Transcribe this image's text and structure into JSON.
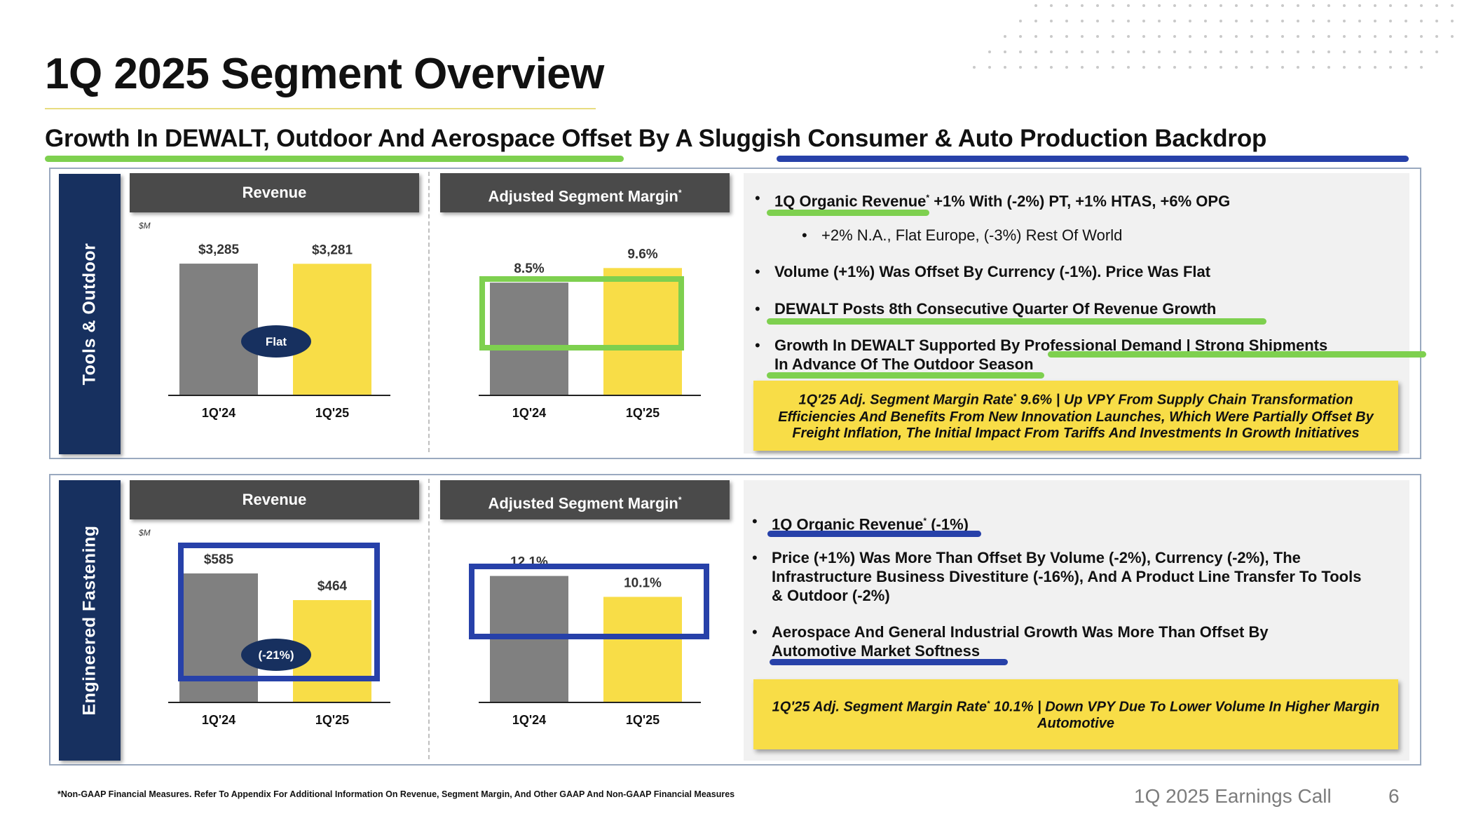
{
  "title": "1Q 2025 Segment Overview",
  "subtitle": "Growth In DEWALT, Outdoor And Aerospace Offset By A Sluggish Consumer & Auto Production Backdrop",
  "colors": {
    "navy": "#17305f",
    "bar_prior": "#808080",
    "bar_current": "#f8dd47",
    "accent_green": "#7ed04f",
    "accent_blue": "#2741a9"
  },
  "segments": [
    {
      "name": "Tools & Outdoor",
      "revenue_header": "Revenue",
      "margin_header": "Adjusted Segment Margin",
      "margin_header_mark": "*",
      "unit": "$M",
      "revenue_badge": "Flat",
      "bullets": [
        {
          "pre": "1Q Organic Revenue",
          "mark": "*",
          "post": " +1% With (-2%) PT, +1% HTAS, +6% OPG"
        },
        {
          "text": "+2% N.A.,  Flat Europe, (-3%) Rest Of World"
        },
        {
          "text": "Volume (+1%) Was Offset By Currency (-1%).  Price Was Flat"
        },
        {
          "text": "DEWALT Posts 8th Consecutive Quarter Of Revenue Growth"
        },
        {
          "line1": "Growth In DEWALT Supported By Professional Demand | Strong Shipments",
          "line2": "In Advance Of The Outdoor Season"
        }
      ],
      "callout": {
        "pre": "1Q'25 Adj. Segment Margin Rate",
        "mark": "*",
        "post": " 9.6% | Up VPY From Supply Chain Transformation Efficiencies And Benefits From New Innovation Launches, Which Were Partially Offset By Freight Inflation, The Initial Impact From Tariffs And Investments In Growth Initiatives"
      }
    },
    {
      "name": "Engineered Fastening",
      "revenue_header": "Revenue",
      "margin_header": "Adjusted Segment Margin",
      "margin_header_mark": "*",
      "unit": "$M",
      "revenue_badge": "(-21%)",
      "bullets": [
        {
          "pre": "1Q Organic Revenue",
          "mark": "*",
          "post": " (-1%)"
        },
        {
          "text": "Price (+1%) Was More Than Offset By Volume (-2%), Currency (-2%), The Infrastructure Business Divestiture (-16%), And A Product Line Transfer To Tools & Outdoor (-2%)"
        },
        {
          "line1": "Aerospace And General Industrial Growth Was More Than Offset By",
          "line2": "Automotive Market Softness"
        }
      ],
      "callout": {
        "pre": "1Q'25 Adj. Segment Margin Rate",
        "mark": "*",
        "post": " 10.1% | Down VPY Due To Lower Volume In Higher Margin Automotive"
      }
    }
  ],
  "chart_data": [
    {
      "type": "bar",
      "title": "Revenue",
      "ylabel": "$M",
      "categories": [
        "1Q'24",
        "1Q'25"
      ],
      "values": [
        3285,
        3281
      ],
      "labels": [
        "$3,285",
        "$3,281"
      ],
      "ylim": [
        0,
        4300
      ]
    },
    {
      "type": "bar",
      "title": "Adjusted Segment Margin*",
      "categories": [
        "1Q'24",
        "1Q'25"
      ],
      "values": [
        8.5,
        9.6
      ],
      "labels": [
        "8.5%",
        "9.6%"
      ],
      "ylim": [
        0,
        13
      ]
    },
    {
      "type": "bar",
      "title": "Revenue",
      "ylabel": "$M",
      "categories": [
        "1Q'24",
        "1Q'25"
      ],
      "values": [
        585,
        464
      ],
      "labels": [
        "$585",
        "$464"
      ],
      "ylim": [
        0,
        782
      ]
    },
    {
      "type": "bar",
      "title": "Adjusted Segment Margin*",
      "categories": [
        "1Q'24",
        "1Q'25"
      ],
      "values": [
        12.1,
        10.1
      ],
      "labels": [
        "12.1%",
        "10.1%"
      ],
      "ylim": [
        0,
        16.5
      ]
    }
  ],
  "footer": {
    "footnote": "*Non-GAAP Financial Measures. Refer To Appendix For Additional Information On Revenue, Segment Margin, And Other GAAP And Non-GAAP Financial Measures",
    "event": "1Q 2025 Earnings Call",
    "page": "6"
  }
}
